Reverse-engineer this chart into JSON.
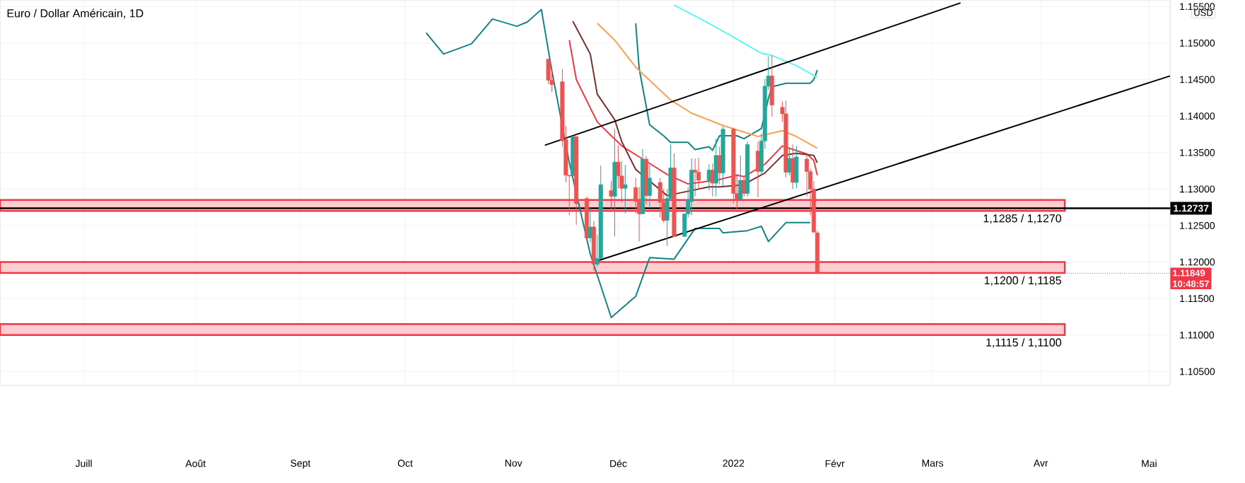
{
  "chart_data": {
    "type": "candlestick",
    "title": "Euro / Dollar Américain, 1D",
    "x": [
      "2021-11-11",
      "2021-11-12",
      "2021-11-15",
      "2021-11-16",
      "2021-11-17",
      "2021-11-18",
      "2021-11-19",
      "2021-11-22",
      "2021-11-23",
      "2021-11-24",
      "2021-11-25",
      "2021-11-26",
      "2021-11-29",
      "2021-11-30",
      "2021-12-01",
      "2021-12-02",
      "2021-12-03",
      "2021-12-06",
      "2021-12-07",
      "2021-12-08",
      "2021-12-09",
      "2021-12-10",
      "2021-12-13",
      "2021-12-14",
      "2021-12-15",
      "2021-12-16",
      "2021-12-17",
      "2021-12-20",
      "2021-12-21",
      "2021-12-22",
      "2021-12-23",
      "2021-12-24",
      "2021-12-27",
      "2021-12-28",
      "2021-12-29",
      "2021-12-30",
      "2021-12-31",
      "2022-01-03",
      "2022-01-04",
      "2022-01-05",
      "2022-01-06",
      "2022-01-07",
      "2022-01-10",
      "2022-01-11",
      "2022-01-12",
      "2022-01-13",
      "2022-01-14",
      "2022-01-17",
      "2022-01-18",
      "2022-01-19",
      "2022-01-20",
      "2022-01-21",
      "2022-01-24",
      "2022-01-25",
      "2022-01-26",
      "2022-01-27"
    ],
    "ohlc": [
      [
        1.1478,
        1.1478,
        1.1444,
        1.1449
      ],
      [
        1.1449,
        1.1464,
        1.1433,
        1.1443
      ],
      [
        1.1447,
        1.1464,
        1.1358,
        1.1366
      ],
      [
        1.1368,
        1.1386,
        1.1309,
        1.1319
      ],
      [
        1.1319,
        1.1319,
        1.1264,
        1.1318
      ],
      [
        1.1318,
        1.1373,
        1.1317,
        1.1372
      ],
      [
        1.1372,
        1.1372,
        1.1251,
        1.128
      ],
      [
        1.1287,
        1.129,
        1.1233,
        1.1233
      ],
      [
        1.1233,
        1.1275,
        1.1227,
        1.1248
      ],
      [
        1.1248,
        1.1256,
        1.1188,
        1.1197
      ],
      [
        1.1197,
        1.1237,
        1.1194,
        1.1205
      ],
      [
        1.1205,
        1.1332,
        1.1205,
        1.1306
      ],
      [
        1.1298,
        1.1311,
        1.1269,
        1.129
      ],
      [
        1.129,
        1.1382,
        1.1235,
        1.1337
      ],
      [
        1.1337,
        1.136,
        1.1301,
        1.1318
      ],
      [
        1.1318,
        1.1338,
        1.1282,
        1.1301
      ],
      [
        1.1301,
        1.1333,
        1.1267,
        1.1306
      ],
      [
        1.1302,
        1.1315,
        1.1267,
        1.1283
      ],
      [
        1.1283,
        1.1303,
        1.1228,
        1.1266
      ],
      [
        1.1266,
        1.1355,
        1.1266,
        1.1341
      ],
      [
        1.1341,
        1.1345,
        1.1279,
        1.1291
      ],
      [
        1.1291,
        1.1333,
        1.1274,
        1.1315
      ],
      [
        1.1309,
        1.1315,
        1.1261,
        1.1282
      ],
      [
        1.1282,
        1.13,
        1.1254,
        1.1257
      ],
      [
        1.1257,
        1.13,
        1.1222,
        1.1287
      ],
      [
        1.1287,
        1.1361,
        1.1285,
        1.1329
      ],
      [
        1.1329,
        1.1349,
        1.1235,
        1.1235
      ],
      [
        1.1235,
        1.1266,
        1.1235,
        1.1266
      ],
      [
        1.1266,
        1.1303,
        1.1261,
        1.1285
      ],
      [
        1.1283,
        1.1342,
        1.1264,
        1.1326
      ],
      [
        1.1326,
        1.1342,
        1.129,
        1.1323
      ],
      [
        1.1323,
        1.1343,
        1.13,
        1.1312
      ],
      [
        1.1312,
        1.1334,
        1.1298,
        1.1326
      ],
      [
        1.1326,
        1.1335,
        1.129,
        1.1308
      ],
      [
        1.1308,
        1.1369,
        1.129,
        1.1346
      ],
      [
        1.1346,
        1.1358,
        1.1306,
        1.1322
      ],
      [
        1.1322,
        1.1386,
        1.1304,
        1.1382
      ],
      [
        1.1382,
        1.1384,
        1.128,
        1.1294
      ],
      [
        1.1294,
        1.1321,
        1.1272,
        1.1286
      ],
      [
        1.1286,
        1.1346,
        1.1285,
        1.1312
      ],
      [
        1.1312,
        1.1318,
        1.129,
        1.1294
      ],
      [
        1.1294,
        1.1365,
        1.129,
        1.1361
      ],
      [
        1.1352,
        1.1365,
        1.1289,
        1.1324
      ],
      [
        1.1324,
        1.1376,
        1.1319,
        1.1366
      ],
      [
        1.1366,
        1.1451,
        1.1355,
        1.1441
      ],
      [
        1.1441,
        1.1482,
        1.1436,
        1.1455
      ],
      [
        1.1455,
        1.1483,
        1.1399,
        1.1415
      ],
      [
        1.1412,
        1.142,
        1.1392,
        1.1403
      ],
      [
        1.1403,
        1.1421,
        1.1316,
        1.1323
      ],
      [
        1.1323,
        1.1355,
        1.1319,
        1.1342
      ],
      [
        1.1342,
        1.1361,
        1.13,
        1.1309
      ],
      [
        1.1309,
        1.1359,
        1.1301,
        1.1344
      ],
      [
        1.1341,
        1.1348,
        1.129,
        1.1324
      ],
      [
        1.1324,
        1.1328,
        1.1264,
        1.13
      ],
      [
        1.13,
        1.1311,
        1.124,
        1.1241
      ],
      [
        1.124,
        1.1243,
        1.1183,
        1.11849
      ]
    ],
    "colors": [
      "#ef5350",
      "#ef5350",
      "#ef5350",
      "#ef5350",
      "#ef5350",
      "#26a69a",
      "#ef5350",
      "#ef5350",
      "#26a69a",
      "#ef5350",
      "#26a69a",
      "#26a69a",
      "#ef5350",
      "#26a69a",
      "#ef5350",
      "#ef5350",
      "#26a69a",
      "#ef5350",
      "#ef5350",
      "#26a69a",
      "#ef5350",
      "#26a69a",
      "#ef5350",
      "#ef5350",
      "#26a69a",
      "#26a69a",
      "#ef5350",
      "#26a69a",
      "#26a69a",
      "#26a69a",
      "#ef5350",
      "#ef5350",
      "#26a69a",
      "#ef5350",
      "#26a69a",
      "#ef5350",
      "#26a69a",
      "#ef5350",
      "#ef5350",
      "#26a69a",
      "#ef5350",
      "#26a69a",
      "#ef5350",
      "#26a69a",
      "#26a69a",
      "#26a69a",
      "#ef5350",
      "#ef5350",
      "#ef5350",
      "#26a69a",
      "#ef5350",
      "#26a69a",
      "#ef5350",
      "#ef5350",
      "#ef5350",
      "#ef5350"
    ],
    "series": [
      {
        "type": "line",
        "color": "#138484",
        "x": [
          "2021-10-07",
          "2021-10-12",
          "2021-10-20",
          "2021-10-26",
          "2021-11-02",
          "2021-11-05",
          "2021-11-09",
          "2021-11-12",
          "2021-11-17",
          "2021-11-23",
          "2021-11-29",
          "2021-12-06",
          "2021-12-10",
          "2021-12-17",
          "2021-12-23",
          "2021-12-30",
          "2021-12-31",
          "2022-01-07",
          "2022-01-11",
          "2022-01-13",
          "2022-01-18",
          "2022-01-25"
        ],
        "values": [
          1.1514,
          1.1485,
          1.1499,
          1.1533,
          1.1523,
          1.1529,
          1.1546,
          1.1462,
          1.1336,
          1.1211,
          1.1124,
          1.1153,
          1.1206,
          1.1204,
          1.1246,
          1.1246,
          1.124,
          1.1243,
          1.1249,
          1.1228,
          1.1254,
          1.1254
        ]
      },
      {
        "type": "line",
        "color": "#138484",
        "x": [
          "2021-12-06",
          "2021-12-07",
          "2021-12-10",
          "2021-12-14",
          "2021-12-16",
          "2021-12-21",
          "2021-12-23",
          "2021-12-27",
          "2021-12-28",
          "2021-12-30",
          "2022-01-04",
          "2022-01-06",
          "2022-01-11",
          "2022-01-13",
          "2022-01-14",
          "2022-01-18",
          "2022-01-25",
          "2022-01-26",
          "2022-01-27"
        ],
        "values": [
          1.1527,
          1.1465,
          1.1388,
          1.1373,
          1.1364,
          1.1364,
          1.1354,
          1.1358,
          1.1353,
          1.1373,
          1.1373,
          1.1369,
          1.1383,
          1.1424,
          1.144,
          1.1445,
          1.1445,
          1.145,
          1.1463
        ]
      },
      {
        "type": "line",
        "color": "#5ff5f5",
        "x": [
          "2021-12-17",
          "2021-12-27",
          "2022-01-03",
          "2022-01-11",
          "2022-01-14",
          "2022-01-21",
          "2022-01-27"
        ],
        "values": [
          1.1552,
          1.1527,
          1.1508,
          1.1486,
          1.1483,
          1.1469,
          1.1453
        ]
      },
      {
        "type": "line",
        "color": "#ffa04d",
        "x": [
          "2021-11-25",
          "2021-11-30",
          "2021-12-06",
          "2021-12-16",
          "2021-12-22",
          "2021-12-31",
          "2022-01-10",
          "2022-01-17",
          "2022-01-21",
          "2022-01-27"
        ],
        "values": [
          1.1527,
          1.1504,
          1.1467,
          1.1422,
          1.1404,
          1.1387,
          1.1372,
          1.138,
          1.1372,
          1.1356
        ]
      },
      {
        "type": "line",
        "color": "#f23645",
        "x": [
          "2021-11-17",
          "2021-11-19",
          "2021-11-25",
          "2021-11-29",
          "2021-12-01",
          "2021-12-02",
          "2021-12-08",
          "2021-12-15",
          "2021-12-21",
          "2021-12-29",
          "2022-01-04",
          "2022-01-06",
          "2022-01-12",
          "2022-01-17",
          "2022-01-24",
          "2022-01-26",
          "2022-01-27"
        ],
        "values": [
          1.1504,
          1.145,
          1.1392,
          1.1373,
          1.1364,
          1.1359,
          1.1341,
          1.132,
          1.1307,
          1.1312,
          1.1319,
          1.1317,
          1.1334,
          1.1359,
          1.1348,
          1.1339,
          1.1319
        ]
      },
      {
        "type": "line",
        "color": "#7b2c2c",
        "x": [
          "2021-11-18",
          "2021-11-23",
          "2021-11-25",
          "2021-11-30",
          "2021-12-02",
          "2021-12-06",
          "2021-12-15",
          "2021-12-22",
          "2021-12-27",
          "2021-12-30",
          "2022-01-04",
          "2022-01-07",
          "2022-01-12",
          "2022-01-17",
          "2022-01-21",
          "2022-01-26",
          "2022-01-27"
        ],
        "values": [
          1.153,
          1.1485,
          1.143,
          1.1395,
          1.1365,
          1.1327,
          1.1291,
          1.1298,
          1.1303,
          1.1303,
          1.1305,
          1.1309,
          1.1322,
          1.1346,
          1.1349,
          1.1346,
          1.1336
        ]
      },
      {
        "type": "line",
        "color": "#000000",
        "x": [
          "2021-11-10",
          "2022-03-09"
        ],
        "values": [
          1.136,
          1.1555
        ]
      },
      {
        "type": "line",
        "color": "#000000",
        "x": [
          "2021-11-24",
          "2022-05-08"
        ],
        "values": [
          1.12,
          1.1455
        ]
      }
    ],
    "bands": [
      {
        "axis": "y",
        "from": 1.127,
        "to": 1.1285,
        "label": "1,1285 / 1,1270",
        "color": "#f23645"
      },
      {
        "axis": "y",
        "from": 1.1185,
        "to": 1.12,
        "label": "1,1200 / 1,1185",
        "color": "#f23645"
      },
      {
        "axis": "y",
        "from": 1.11,
        "to": 1.1115,
        "label": "1,1115 / 1,1100",
        "color": "#f23645"
      }
    ],
    "ref_lines": [
      {
        "axis": "y",
        "value": 1.12737,
        "label": "1.12737",
        "color": "#000000",
        "line_style": "solid"
      },
      {
        "axis": "y",
        "value": 1.11849,
        "label": "1.11849",
        "color": "#f23645",
        "line_style": "dotted"
      }
    ],
    "annotations": [
      "USD",
      "10:48:57"
    ],
    "xlim": [
      "2021-06-07",
      "2022-05-08"
    ],
    "xticks": [
      {
        "value": "2021-07-01",
        "label": "Juill"
      },
      {
        "value": "2021-08-02",
        "label": "Août"
      },
      {
        "value": "2021-09-01",
        "label": "Sept"
      },
      {
        "value": "2021-10-01",
        "label": "Oct"
      },
      {
        "value": "2021-11-01",
        "label": "Nov"
      },
      {
        "value": "2021-12-01",
        "label": "Déc"
      },
      {
        "value": "2022-01-03",
        "label": "2022"
      },
      {
        "value": "2022-02-01",
        "label": "Févr"
      },
      {
        "value": "2022-03-01",
        "label": "Mars"
      },
      {
        "value": "2022-04-01",
        "label": "Avr"
      },
      {
        "value": "2022-05-02",
        "label": "Mai"
      }
    ],
    "ylim": [
      1.1031,
      1.1559
    ],
    "yticks": [
      {
        "value": 1.105,
        "label": "1.10500"
      },
      {
        "value": 1.11,
        "label": "1.11000"
      },
      {
        "value": 1.115,
        "label": "1.11500"
      },
      {
        "value": 1.12,
        "label": "1.12000"
      },
      {
        "value": 1.125,
        "label": "1.12500"
      },
      {
        "value": 1.13,
        "label": "1.13000"
      },
      {
        "value": 1.135,
        "label": "1.13500"
      },
      {
        "value": 1.14,
        "label": "1.14000"
      },
      {
        "value": 1.145,
        "label": "1.14500"
      },
      {
        "value": 1.15,
        "label": "1.15000"
      },
      {
        "value": 1.155,
        "label": "1.15500"
      }
    ],
    "grid": true
  }
}
